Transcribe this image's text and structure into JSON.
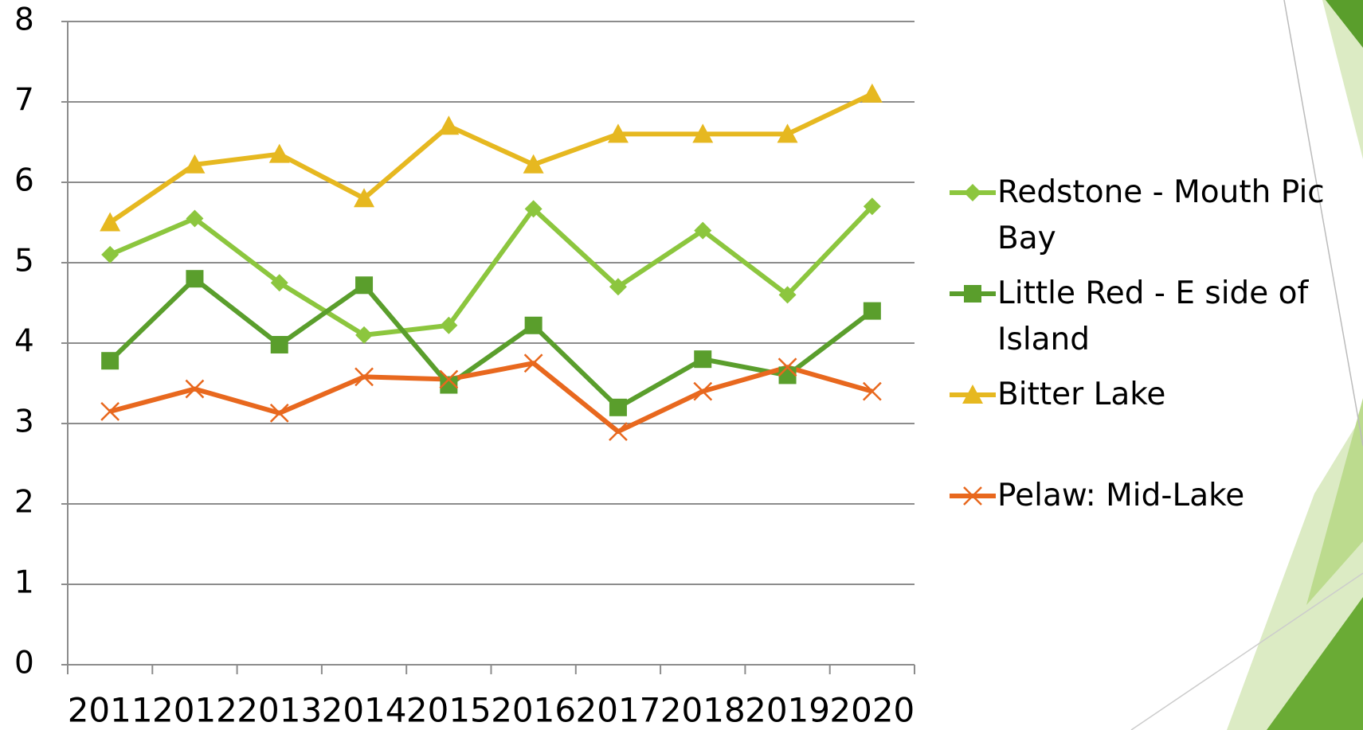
{
  "chart_data": {
    "type": "line",
    "categories": [
      "2011",
      "2012",
      "2013",
      "2014",
      "2015",
      "2016",
      "2017",
      "2018",
      "2019",
      "2020"
    ],
    "series": [
      {
        "name": "Redstone - Mouth Pic Bay",
        "color": "#8cc63e",
        "marker": "diamond",
        "values": [
          5.1,
          5.55,
          4.75,
          4.1,
          4.22,
          5.67,
          4.7,
          5.4,
          4.6,
          5.7
        ]
      },
      {
        "name": "Little Red - E side of Island",
        "color": "#5a9e2c",
        "marker": "square",
        "values": [
          3.78,
          4.8,
          3.98,
          4.72,
          3.48,
          4.22,
          3.2,
          3.8,
          3.6,
          4.4
        ]
      },
      {
        "name": "Bitter Lake",
        "color": "#e6b820",
        "marker": "triangle",
        "values": [
          5.5,
          6.22,
          6.35,
          5.8,
          6.7,
          6.22,
          6.6,
          6.6,
          6.6,
          7.1
        ]
      },
      {
        "name": "Pelaw: Mid-Lake",
        "color": "#e8681e",
        "marker": "x",
        "values": [
          3.15,
          3.43,
          3.13,
          3.58,
          3.55,
          3.75,
          2.9,
          3.4,
          3.7,
          3.4
        ]
      }
    ],
    "ylim": [
      0,
      8
    ],
    "yticks": [
      0,
      1,
      2,
      3,
      4,
      5,
      6,
      7,
      8
    ],
    "grid": true,
    "legend": "right"
  }
}
